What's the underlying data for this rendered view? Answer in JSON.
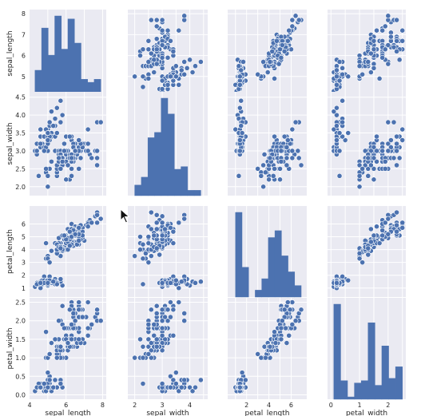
{
  "chart_data": {
    "type": "scatter",
    "layout": "pairplot",
    "variables": [
      "sepal_length",
      "sepal_width",
      "petal_length",
      "petal_width"
    ],
    "axis_ranges": {
      "sepal_length": [
        4.0,
        8.2
      ],
      "sepal_width": [
        1.75,
        4.65
      ],
      "petal_length": [
        0.3,
        7.4
      ],
      "petal_width": [
        -0.12,
        2.62
      ]
    },
    "ticks": {
      "sepal_length": [
        5,
        6,
        7,
        8
      ],
      "sepal_width": [
        2.0,
        2.5,
        3.0,
        3.5,
        4.0,
        4.5
      ],
      "petal_length": [
        1,
        2,
        3,
        4,
        5,
        6
      ],
      "petal_width": [
        0.0,
        0.5,
        1.0,
        1.5,
        2.0,
        2.5
      ]
    },
    "x_ticks": {
      "sepal_length": [
        "4",
        "6",
        "8"
      ],
      "sepal_width": [
        "2",
        "3",
        "4"
      ],
      "petal_length": [
        "2",
        "4",
        "6"
      ],
      "petal_width": [
        "0",
        "1",
        "2"
      ]
    },
    "y_ticks": {
      "sepal_length": [
        "5",
        "6",
        "7",
        "8"
      ],
      "sepal_width": [
        "2.0",
        "2.5",
        "3.0",
        "3.5",
        "4.0",
        "4.5"
      ],
      "petal_length": [
        "1",
        "2",
        "3",
        "4",
        "5",
        "6"
      ],
      "petal_width": [
        "0.0",
        "0.5",
        "1.0",
        "1.5",
        "2.0",
        "2.5"
      ]
    },
    "histograms": {
      "sepal_length": {
        "edges": [
          4.3,
          4.66,
          5.02,
          5.38,
          5.74,
          6.1,
          6.46,
          6.82,
          7.18,
          7.54,
          7.9
        ],
        "counts": [
          9,
          23,
          14,
          27,
          16,
          26,
          18,
          6,
          5,
          6
        ]
      },
      "sepal_width": {
        "edges": [
          2.0,
          2.24,
          2.48,
          2.72,
          2.96,
          3.2,
          3.44,
          3.68,
          3.92,
          4.16,
          4.4
        ],
        "counts": [
          4,
          7,
          22,
          24,
          37,
          31,
          10,
          11,
          2,
          2
        ]
      },
      "petal_length": {
        "edges": [
          1.0,
          1.59,
          2.18,
          2.77,
          3.36,
          3.95,
          4.54,
          5.13,
          5.72,
          6.31,
          6.9
        ],
        "counts": [
          37,
          13,
          0,
          3,
          8,
          26,
          29,
          18,
          11,
          5
        ]
      },
      "petal_width": {
        "edges": [
          0.1,
          0.34,
          0.58,
          0.82,
          1.06,
          1.3,
          1.54,
          1.78,
          2.02,
          2.26,
          2.5
        ],
        "counts": [
          41,
          8,
          1,
          7,
          8,
          33,
          6,
          23,
          9,
          14
        ]
      }
    },
    "points": [
      [
        5.1,
        3.5,
        1.4,
        0.2
      ],
      [
        4.9,
        3.0,
        1.4,
        0.2
      ],
      [
        4.7,
        3.2,
        1.3,
        0.2
      ],
      [
        4.6,
        3.1,
        1.5,
        0.2
      ],
      [
        5.0,
        3.6,
        1.4,
        0.2
      ],
      [
        5.4,
        3.9,
        1.7,
        0.4
      ],
      [
        4.6,
        3.4,
        1.4,
        0.3
      ],
      [
        5.0,
        3.4,
        1.5,
        0.2
      ],
      [
        4.4,
        2.9,
        1.4,
        0.2
      ],
      [
        4.9,
        3.1,
        1.5,
        0.1
      ],
      [
        5.4,
        3.7,
        1.5,
        0.2
      ],
      [
        4.8,
        3.4,
        1.6,
        0.2
      ],
      [
        4.8,
        3.0,
        1.4,
        0.1
      ],
      [
        4.3,
        3.0,
        1.1,
        0.1
      ],
      [
        5.8,
        4.0,
        1.2,
        0.2
      ],
      [
        5.7,
        4.4,
        1.5,
        0.4
      ],
      [
        5.4,
        3.9,
        1.3,
        0.4
      ],
      [
        5.1,
        3.5,
        1.4,
        0.3
      ],
      [
        5.7,
        3.8,
        1.7,
        0.3
      ],
      [
        5.1,
        3.8,
        1.5,
        0.3
      ],
      [
        5.4,
        3.4,
        1.7,
        0.2
      ],
      [
        5.1,
        3.7,
        1.5,
        0.4
      ],
      [
        4.6,
        3.6,
        1.0,
        0.2
      ],
      [
        5.1,
        3.3,
        1.7,
        0.5
      ],
      [
        4.8,
        3.4,
        1.9,
        0.2
      ],
      [
        5.0,
        3.0,
        1.6,
        0.2
      ],
      [
        5.0,
        3.4,
        1.6,
        0.4
      ],
      [
        5.2,
        3.5,
        1.5,
        0.2
      ],
      [
        5.2,
        3.4,
        1.4,
        0.2
      ],
      [
        4.7,
        3.2,
        1.6,
        0.2
      ],
      [
        4.8,
        3.1,
        1.6,
        0.2
      ],
      [
        5.4,
        3.4,
        1.5,
        0.4
      ],
      [
        5.2,
        4.1,
        1.5,
        0.1
      ],
      [
        5.5,
        4.2,
        1.4,
        0.2
      ],
      [
        4.9,
        3.1,
        1.5,
        0.2
      ],
      [
        5.0,
        3.2,
        1.2,
        0.2
      ],
      [
        5.5,
        3.5,
        1.3,
        0.2
      ],
      [
        4.9,
        3.6,
        1.4,
        0.1
      ],
      [
        4.4,
        3.0,
        1.3,
        0.2
      ],
      [
        5.1,
        3.4,
        1.5,
        0.2
      ],
      [
        5.0,
        3.5,
        1.3,
        0.3
      ],
      [
        4.5,
        2.3,
        1.3,
        0.3
      ],
      [
        4.4,
        3.2,
        1.3,
        0.2
      ],
      [
        5.0,
        3.5,
        1.6,
        0.6
      ],
      [
        5.1,
        3.8,
        1.9,
        0.4
      ],
      [
        4.8,
        3.0,
        1.4,
        0.3
      ],
      [
        5.1,
        3.8,
        1.6,
        0.2
      ],
      [
        4.6,
        3.2,
        1.4,
        0.2
      ],
      [
        5.3,
        3.7,
        1.5,
        0.2
      ],
      [
        5.0,
        3.3,
        1.4,
        0.2
      ],
      [
        7.0,
        3.2,
        4.7,
        1.4
      ],
      [
        6.4,
        3.2,
        4.5,
        1.5
      ],
      [
        6.9,
        3.1,
        4.9,
        1.5
      ],
      [
        5.5,
        2.3,
        4.0,
        1.3
      ],
      [
        6.5,
        2.8,
        4.6,
        1.5
      ],
      [
        5.7,
        2.8,
        4.5,
        1.3
      ],
      [
        6.3,
        3.3,
        4.7,
        1.6
      ],
      [
        4.9,
        2.4,
        3.3,
        1.0
      ],
      [
        6.6,
        2.9,
        4.6,
        1.3
      ],
      [
        5.2,
        2.7,
        3.9,
        1.4
      ],
      [
        5.0,
        2.0,
        3.5,
        1.0
      ],
      [
        5.9,
        3.0,
        4.2,
        1.5
      ],
      [
        6.0,
        2.2,
        4.0,
        1.0
      ],
      [
        6.1,
        2.9,
        4.7,
        1.4
      ],
      [
        5.6,
        2.9,
        3.6,
        1.3
      ],
      [
        6.7,
        3.1,
        4.4,
        1.4
      ],
      [
        5.6,
        3.0,
        4.5,
        1.5
      ],
      [
        5.8,
        2.7,
        4.1,
        1.0
      ],
      [
        6.2,
        2.2,
        4.5,
        1.5
      ],
      [
        5.6,
        2.5,
        3.9,
        1.1
      ],
      [
        5.9,
        3.2,
        4.8,
        1.8
      ],
      [
        6.1,
        2.8,
        4.0,
        1.3
      ],
      [
        6.3,
        2.5,
        4.9,
        1.5
      ],
      [
        6.1,
        2.8,
        4.7,
        1.2
      ],
      [
        6.4,
        2.9,
        4.3,
        1.3
      ],
      [
        6.6,
        3.0,
        4.4,
        1.4
      ],
      [
        6.8,
        2.8,
        4.8,
        1.4
      ],
      [
        6.7,
        3.0,
        5.0,
        1.7
      ],
      [
        6.0,
        2.9,
        4.5,
        1.5
      ],
      [
        5.7,
        2.6,
        3.5,
        1.0
      ],
      [
        5.5,
        2.4,
        3.8,
        1.1
      ],
      [
        5.5,
        2.4,
        3.7,
        1.0
      ],
      [
        5.8,
        2.7,
        3.9,
        1.2
      ],
      [
        6.0,
        2.7,
        5.1,
        1.6
      ],
      [
        5.4,
        3.0,
        4.5,
        1.5
      ],
      [
        6.0,
        3.4,
        4.5,
        1.6
      ],
      [
        6.7,
        3.1,
        4.7,
        1.5
      ],
      [
        6.3,
        2.3,
        4.4,
        1.3
      ],
      [
        5.6,
        3.0,
        4.1,
        1.3
      ],
      [
        5.5,
        2.5,
        4.0,
        1.3
      ],
      [
        5.5,
        2.6,
        4.4,
        1.2
      ],
      [
        6.1,
        3.0,
        4.6,
        1.4
      ],
      [
        5.8,
        2.6,
        4.0,
        1.2
      ],
      [
        5.0,
        2.3,
        3.3,
        1.0
      ],
      [
        5.6,
        2.7,
        4.2,
        1.3
      ],
      [
        5.7,
        3.0,
        4.2,
        1.2
      ],
      [
        5.7,
        2.9,
        4.2,
        1.3
      ],
      [
        6.2,
        2.9,
        4.3,
        1.3
      ],
      [
        5.1,
        2.5,
        3.0,
        1.1
      ],
      [
        5.7,
        2.8,
        4.1,
        1.3
      ],
      [
        6.3,
        3.3,
        6.0,
        2.5
      ],
      [
        5.8,
        2.7,
        5.1,
        1.9
      ],
      [
        7.1,
        3.0,
        5.9,
        2.1
      ],
      [
        6.3,
        2.9,
        5.6,
        1.8
      ],
      [
        6.5,
        3.0,
        5.8,
        2.2
      ],
      [
        7.6,
        3.0,
        6.6,
        2.1
      ],
      [
        4.9,
        2.5,
        4.5,
        1.7
      ],
      [
        7.3,
        2.9,
        6.3,
        1.8
      ],
      [
        6.7,
        2.5,
        5.8,
        1.8
      ],
      [
        7.2,
        3.6,
        6.1,
        2.5
      ],
      [
        6.5,
        3.2,
        5.1,
        2.0
      ],
      [
        6.4,
        2.7,
        5.3,
        1.9
      ],
      [
        6.8,
        3.0,
        5.5,
        2.1
      ],
      [
        5.7,
        2.5,
        5.0,
        2.0
      ],
      [
        5.8,
        2.8,
        5.1,
        2.4
      ],
      [
        6.4,
        3.2,
        5.3,
        2.3
      ],
      [
        6.5,
        3.0,
        5.5,
        1.8
      ],
      [
        7.7,
        3.8,
        6.7,
        2.2
      ],
      [
        7.7,
        2.6,
        6.9,
        2.3
      ],
      [
        6.0,
        2.2,
        5.0,
        1.5
      ],
      [
        6.9,
        3.2,
        5.7,
        2.3
      ],
      [
        5.6,
        2.8,
        4.9,
        2.0
      ],
      [
        7.7,
        2.8,
        6.7,
        2.0
      ],
      [
        6.3,
        2.7,
        4.9,
        1.8
      ],
      [
        6.7,
        3.3,
        5.7,
        2.1
      ],
      [
        7.2,
        3.2,
        6.0,
        1.8
      ],
      [
        6.2,
        2.8,
        4.8,
        1.8
      ],
      [
        6.1,
        3.0,
        4.9,
        1.8
      ],
      [
        6.4,
        2.8,
        5.6,
        2.1
      ],
      [
        7.2,
        3.0,
        5.8,
        1.6
      ],
      [
        7.4,
        2.8,
        6.1,
        1.9
      ],
      [
        7.9,
        3.8,
        6.4,
        2.0
      ],
      [
        6.4,
        2.8,
        5.6,
        2.2
      ],
      [
        6.3,
        2.8,
        5.1,
        1.5
      ],
      [
        6.1,
        2.6,
        5.6,
        1.4
      ],
      [
        7.7,
        3.0,
        6.1,
        2.3
      ],
      [
        6.3,
        3.4,
        5.6,
        2.4
      ],
      [
        6.4,
        3.1,
        5.5,
        1.8
      ],
      [
        6.0,
        3.0,
        4.8,
        1.8
      ],
      [
        6.9,
        3.1,
        5.4,
        2.1
      ],
      [
        6.7,
        3.1,
        5.6,
        2.4
      ],
      [
        6.9,
        3.1,
        5.1,
        2.3
      ],
      [
        5.8,
        2.7,
        5.1,
        1.9
      ],
      [
        6.8,
        3.2,
        5.9,
        2.3
      ],
      [
        6.7,
        3.3,
        5.7,
        2.5
      ],
      [
        6.7,
        3.0,
        5.2,
        2.3
      ],
      [
        6.3,
        2.5,
        5.0,
        1.9
      ],
      [
        6.5,
        3.0,
        5.2,
        2.0
      ],
      [
        6.2,
        3.4,
        5.4,
        2.3
      ],
      [
        5.9,
        3.0,
        5.1,
        1.8
      ]
    ],
    "grid": true,
    "colors": {
      "panel_bg": "#eaeaf2",
      "grid": "#ffffff",
      "marker": "#4c72b0",
      "marker_edge": "#ffffff"
    }
  }
}
